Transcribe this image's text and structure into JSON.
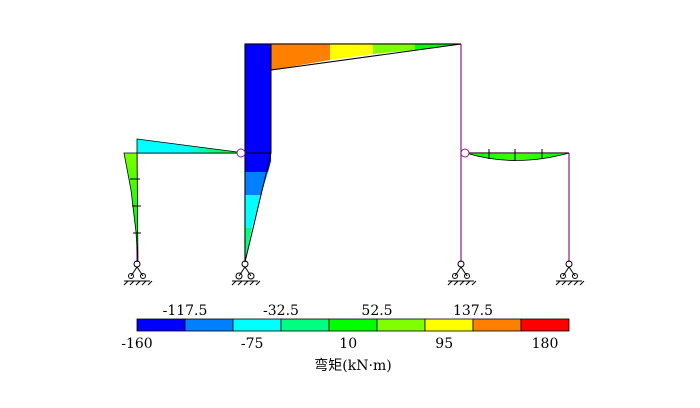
{
  "legend": {
    "title": "弯矩(kN·m)",
    "colors": [
      "#0000ff",
      "#007fff",
      "#00ffff",
      "#00ff80",
      "#00ff00",
      "#80ff00",
      "#ffff00",
      "#ff8000",
      "#ff0000"
    ],
    "ticks_bottom": [
      "-160",
      "-75",
      "10",
      "95",
      "180"
    ],
    "ticks_top": [
      "-117.5",
      "-32.5",
      "52.5",
      "137.5"
    ]
  },
  "colors": {
    "member": "#8b1a8b",
    "outline": "#000000"
  }
}
